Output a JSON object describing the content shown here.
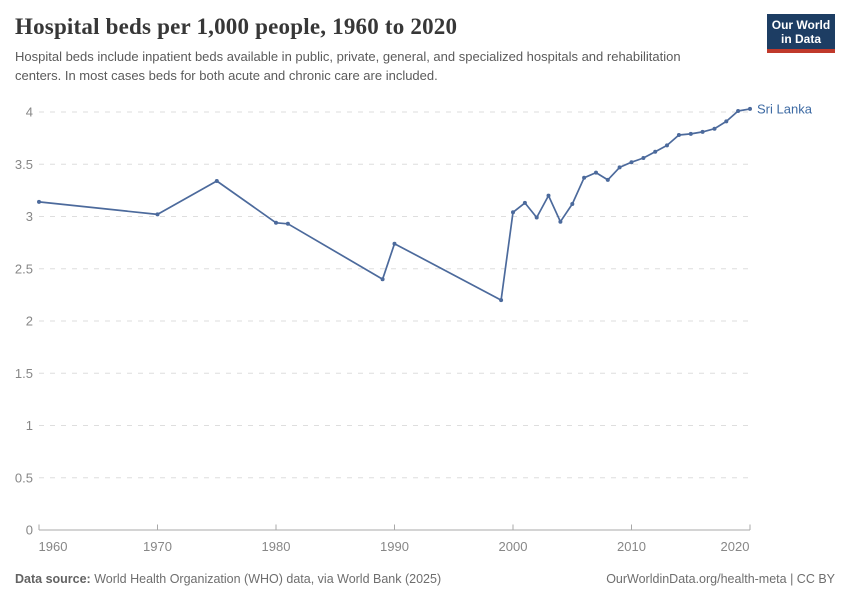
{
  "header": {
    "title": "Hospital beds per 1,000 people, 1960 to 2020",
    "subtitle": "Hospital beds include inpatient beds available in public, private, general, and specialized hospitals and rehabilitation centers. In most cases beds for both acute and chronic care are included.",
    "logo": {
      "line1": "Our World",
      "line2": "in Data",
      "bg_color": "#1d3d63",
      "bar_color": "#c0392b"
    }
  },
  "chart_data": {
    "type": "line",
    "title": "Hospital beds per 1,000 people, 1960 to 2020",
    "xlabel": "",
    "ylabel": "",
    "xlim": [
      1960,
      2020
    ],
    "ylim": [
      0,
      4.1
    ],
    "grid": "horizontal-dashed",
    "x_ticks": [
      1960,
      1970,
      1980,
      1990,
      2000,
      2010,
      2020
    ],
    "y_ticks": [
      0,
      0.5,
      1,
      1.5,
      2,
      2.5,
      3,
      3.5,
      4
    ],
    "series": [
      {
        "name": "Sri Lanka",
        "color": "#4c6a9c",
        "label_color": "#3d6aa3",
        "points": [
          [
            1960,
            3.14
          ],
          [
            1970,
            3.02
          ],
          [
            1975,
            3.34
          ],
          [
            1980,
            2.94
          ],
          [
            1981,
            2.93
          ],
          [
            1989,
            2.4
          ],
          [
            1990,
            2.74
          ],
          [
            1999,
            2.2
          ],
          [
            2000,
            3.04
          ],
          [
            2001,
            3.13
          ],
          [
            2002,
            2.99
          ],
          [
            2003,
            3.2
          ],
          [
            2004,
            2.95
          ],
          [
            2005,
            3.12
          ],
          [
            2006,
            3.37
          ],
          [
            2007,
            3.42
          ],
          [
            2008,
            3.35
          ],
          [
            2009,
            3.47
          ],
          [
            2010,
            3.52
          ],
          [
            2011,
            3.56
          ],
          [
            2012,
            3.62
          ],
          [
            2013,
            3.68
          ],
          [
            2014,
            3.78
          ],
          [
            2015,
            3.79
          ],
          [
            2016,
            3.81
          ],
          [
            2017,
            3.84
          ],
          [
            2018,
            3.91
          ],
          [
            2019,
            4.01
          ],
          [
            2020,
            4.03
          ]
        ]
      }
    ],
    "axis_colors": {
      "tick_label": "#878787",
      "grid": "#dedede",
      "baseline": "#a8a8a8"
    }
  },
  "footer": {
    "source_label": "Data source:",
    "source_text": " World Health Organization (WHO) data, via World Bank (2025)",
    "rights": "OurWorldinData.org/health-meta | CC BY"
  }
}
